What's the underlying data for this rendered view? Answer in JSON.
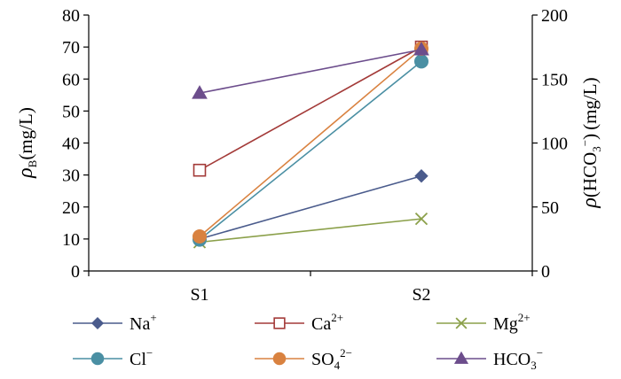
{
  "chart_data": {
    "type": "line",
    "categories": [
      "S1",
      "S2"
    ],
    "y_left": {
      "label_main": "ρ",
      "label_sub": "B",
      "label_rest": "(mg/L)",
      "ylim": [
        0,
        80
      ],
      "ticks": [
        "0",
        "10",
        "20",
        "30",
        "40",
        "50",
        "60",
        "70",
        "80"
      ]
    },
    "y_right": {
      "label_main": "ρ",
      "label_paren_open": "(HCO",
      "label_sub": "3",
      "label_sup": "−",
      "label_paren_close": ")",
      "label_rest": "(mg/L)",
      "ylim": [
        0,
        200
      ],
      "ticks": [
        "0",
        "50",
        "100",
        "150",
        "200"
      ]
    },
    "grid": false,
    "legend_position": "bottom",
    "series": [
      {
        "name": "Na",
        "sup": "+",
        "sub": "",
        "color": "#4a5b8c",
        "marker": "diamond",
        "axis": "left",
        "values": [
          10.0,
          29.7
        ]
      },
      {
        "name": "Ca",
        "sup": "2+",
        "sub": "",
        "color": "#a33a38",
        "marker": "square-open",
        "axis": "left",
        "values": [
          31.5,
          70.0
        ]
      },
      {
        "name": "Mg",
        "sup": "2+",
        "sub": "",
        "color": "#8ba04a",
        "marker": "x",
        "axis": "left",
        "values": [
          9.0,
          16.3
        ]
      },
      {
        "name": "Cl",
        "sup": "−",
        "sub": "",
        "color": "#4a8fa3",
        "marker": "circle",
        "axis": "left",
        "values": [
          9.8,
          65.5
        ]
      },
      {
        "name": "SO",
        "sup": "2−",
        "sub": "4",
        "color": "#d98240",
        "marker": "circle",
        "axis": "left",
        "values": [
          10.8,
          69.5
        ]
      },
      {
        "name": "HCO",
        "sup": "−",
        "sub": "3",
        "color": "#6c4d8c",
        "marker": "triangle",
        "axis": "right",
        "values": [
          139,
          173
        ]
      }
    ]
  }
}
